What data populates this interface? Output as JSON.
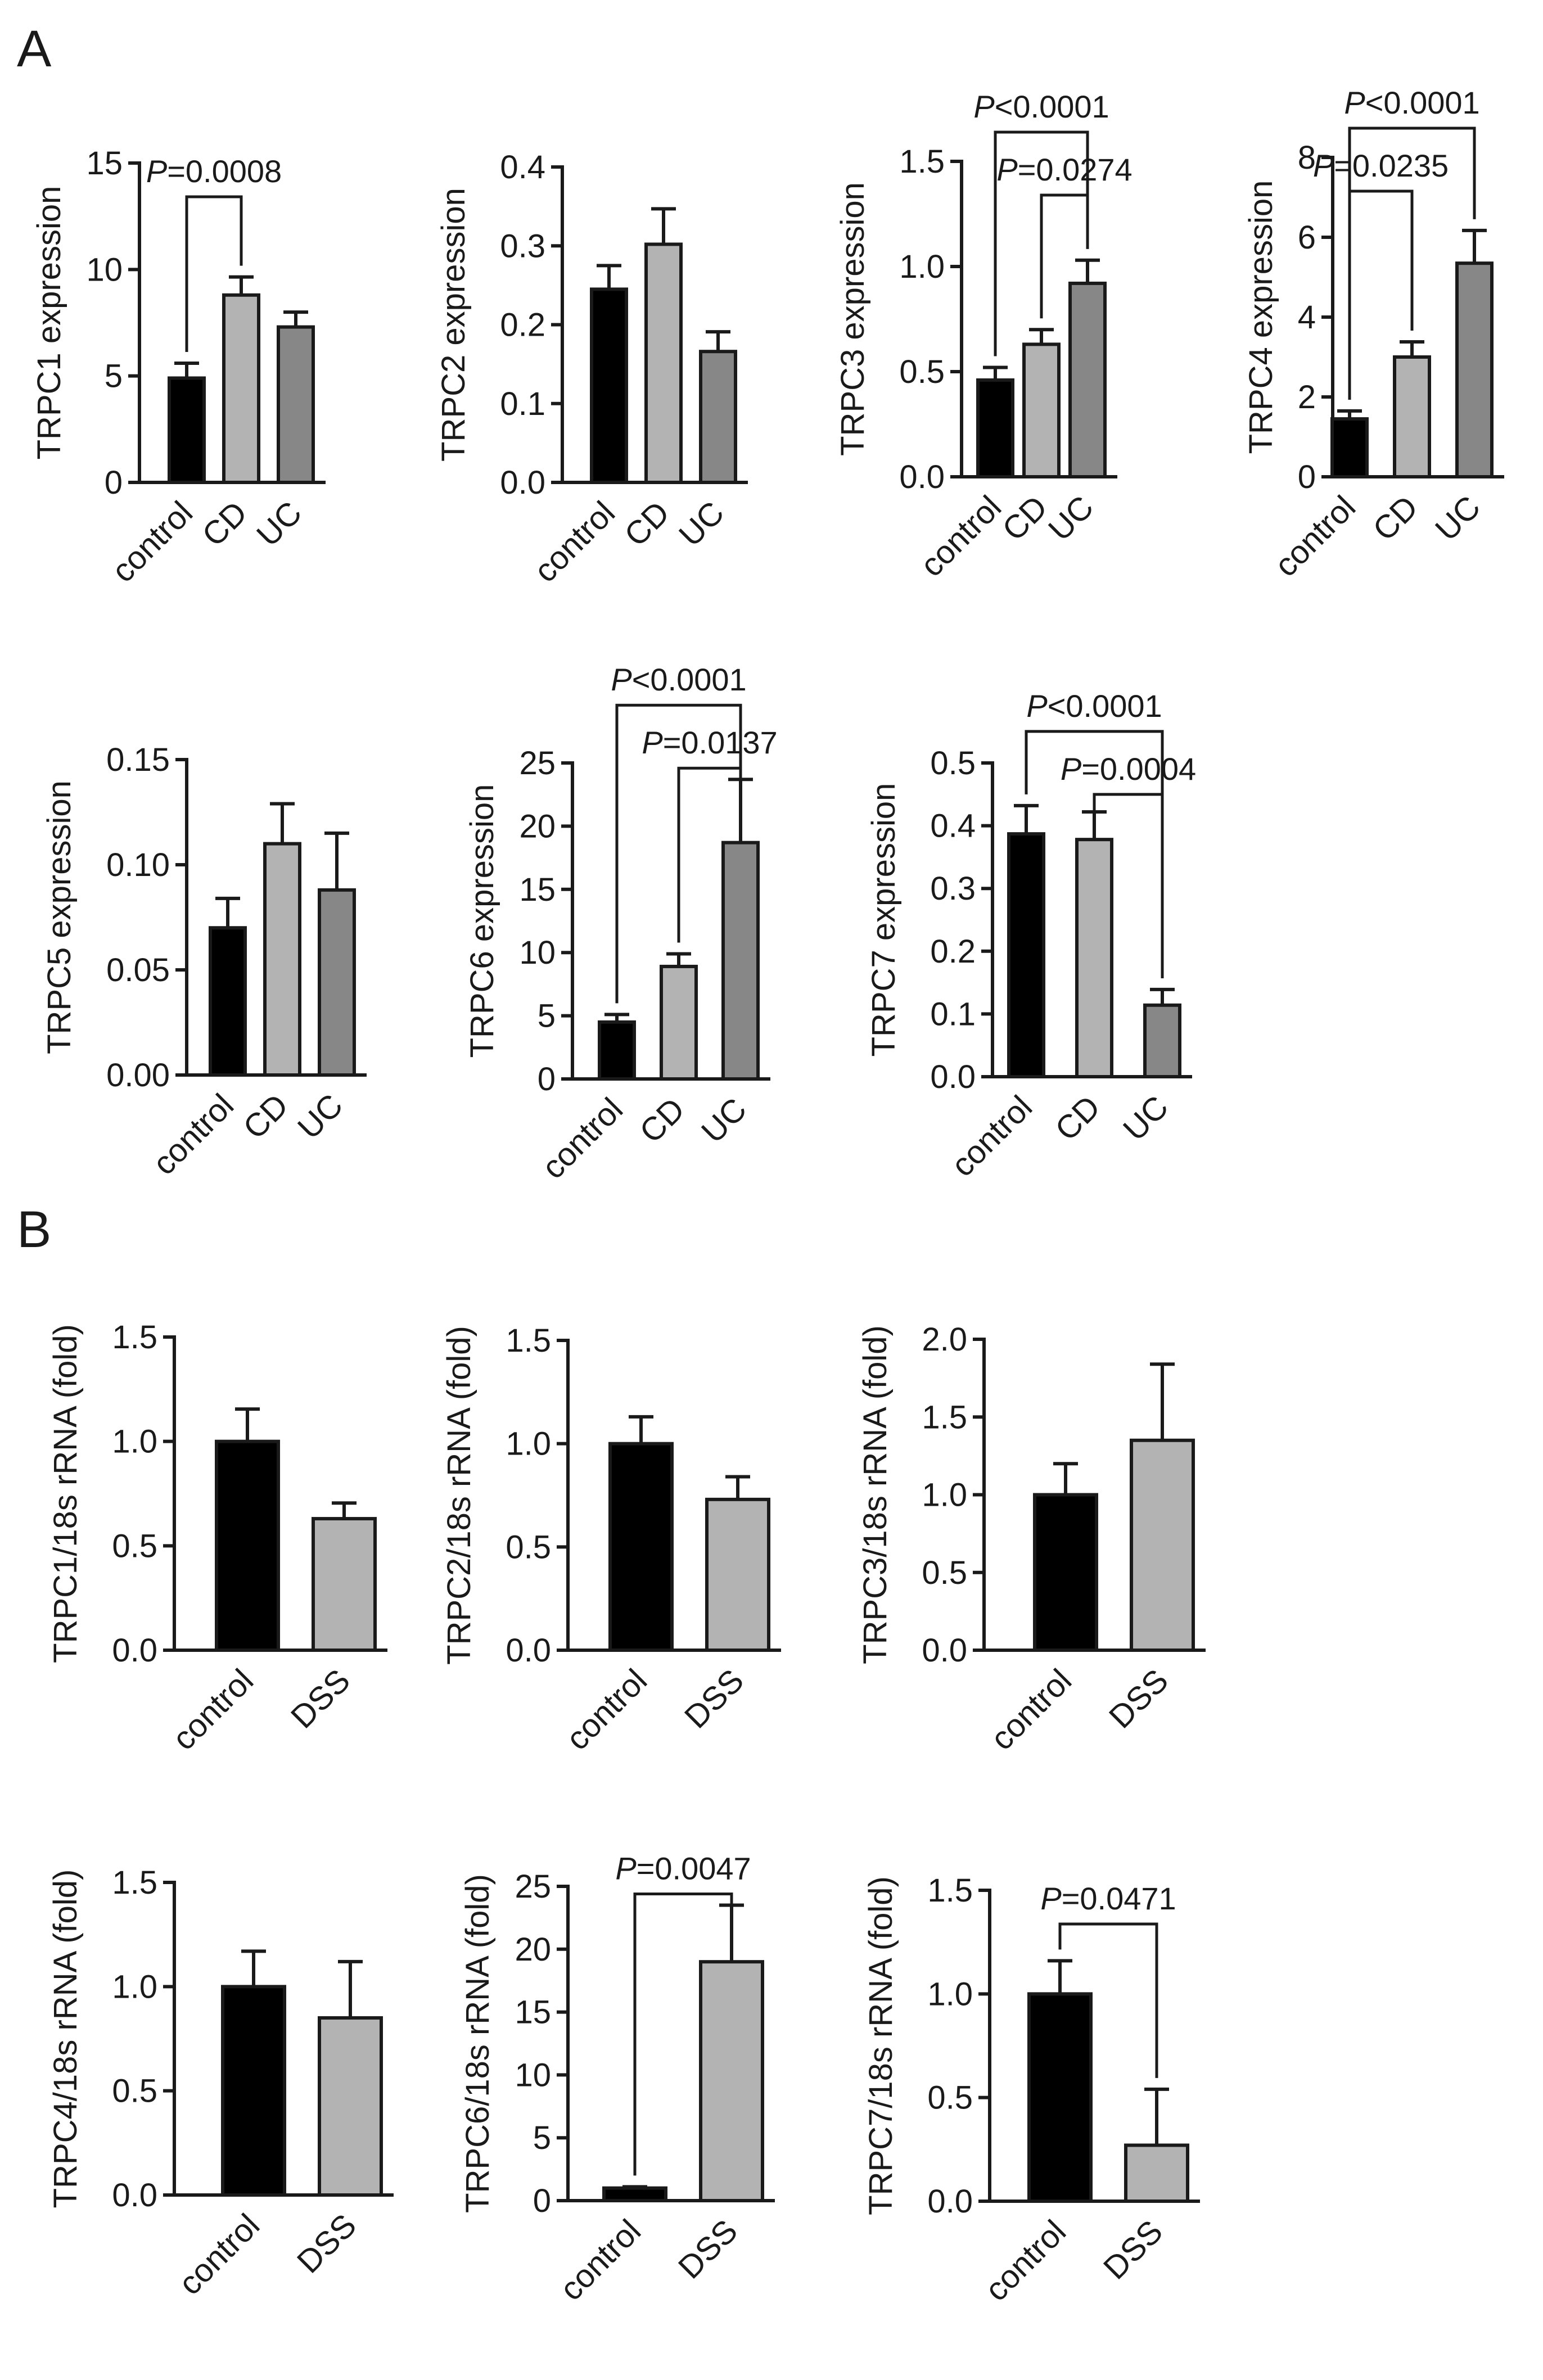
{
  "panels": [
    {
      "label": "A"
    },
    {
      "label": "B"
    }
  ],
  "colors": {
    "control": "#000000",
    "CD": "#b3b3b3",
    "UC": "#878787",
    "DSS": "#b3b3b3",
    "axis": "#1a1a1a"
  },
  "chart_data": [
    {
      "type": "bar",
      "panel": "A",
      "title": "",
      "xlabel": "",
      "ylabel": "TRPC1 expression",
      "categories": [
        "control",
        "CD",
        "UC"
      ],
      "values": [
        4.9,
        8.8,
        7.3
      ],
      "errors": [
        0.7,
        0.85,
        0.7
      ],
      "ylim": [
        0,
        15
      ],
      "yticks": [
        0,
        5,
        10,
        15
      ],
      "tick_labels": [
        "0",
        "5",
        "10",
        "15"
      ],
      "significance": [
        {
          "from": 0,
          "to": 1,
          "label": "P=0.0008"
        }
      ]
    },
    {
      "type": "bar",
      "panel": "A",
      "title": "",
      "xlabel": "",
      "ylabel": "TRPC2 expression",
      "categories": [
        "control",
        "CD",
        "UC"
      ],
      "values": [
        0.245,
        0.302,
        0.166
      ],
      "errors": [
        0.03,
        0.045,
        0.025
      ],
      "ylim": [
        0,
        0.4
      ],
      "yticks": [
        0,
        0.1,
        0.2,
        0.3,
        0.4
      ],
      "tick_labels": [
        "0.0",
        "0.1",
        "0.2",
        "0.3",
        "0.4"
      ],
      "significance": []
    },
    {
      "type": "bar",
      "panel": "A",
      "title": "",
      "xlabel": "",
      "ylabel": "TRPC3 expression",
      "categories": [
        "control",
        "CD",
        "UC"
      ],
      "values": [
        0.46,
        0.63,
        0.92
      ],
      "errors": [
        0.06,
        0.07,
        0.11
      ],
      "ylim": [
        0,
        1.5
      ],
      "yticks": [
        0,
        0.5,
        1.0,
        1.5
      ],
      "tick_labels": [
        "0.0",
        "0.5",
        "1.0",
        "1.5"
      ],
      "significance": [
        {
          "from": 0,
          "to": 2,
          "label": "P<0.0001"
        },
        {
          "from": 1,
          "to": 2,
          "label": "P=0.0274"
        }
      ]
    },
    {
      "type": "bar",
      "panel": "A",
      "title": "",
      "xlabel": "",
      "ylabel": "TRPC4 expression",
      "categories": [
        "control",
        "CD",
        "UC"
      ],
      "values": [
        1.45,
        3.0,
        5.35
      ],
      "errors": [
        0.2,
        0.38,
        0.82
      ],
      "ylim": [
        0,
        8
      ],
      "yticks": [
        0,
        2,
        4,
        6,
        8
      ],
      "tick_labels": [
        "0",
        "2",
        "4",
        "6",
        "8"
      ],
      "significance": [
        {
          "from": 0,
          "to": 2,
          "label": "P<0.0001"
        },
        {
          "from": 0,
          "to": 1,
          "label": "P=0.0235"
        }
      ]
    },
    {
      "type": "bar",
      "panel": "A",
      "title": "",
      "xlabel": "",
      "ylabel": "TRPC5 expression",
      "categories": [
        "control",
        "CD",
        "UC"
      ],
      "values": [
        0.07,
        0.11,
        0.088
      ],
      "errors": [
        0.014,
        0.019,
        0.027
      ],
      "ylim": [
        0,
        0.15
      ],
      "yticks": [
        0,
        0.05,
        0.1,
        0.15
      ],
      "tick_labels": [
        "0.00",
        "0.05",
        "0.10",
        "0.15"
      ],
      "significance": []
    },
    {
      "type": "bar",
      "panel": "A",
      "title": "",
      "xlabel": "",
      "ylabel": "TRPC6 expression",
      "categories": [
        "control",
        "CD",
        "UC"
      ],
      "values": [
        4.5,
        8.9,
        18.7
      ],
      "errors": [
        0.6,
        1.0,
        5.0
      ],
      "ylim": [
        0,
        25
      ],
      "yticks": [
        0,
        5,
        10,
        15,
        20,
        25
      ],
      "tick_labels": [
        "0",
        "5",
        "10",
        "15",
        "20",
        "25"
      ],
      "significance": [
        {
          "from": 0,
          "to": 2,
          "label": "P<0.0001"
        },
        {
          "from": 1,
          "to": 2,
          "label": "P=0.0137"
        }
      ]
    },
    {
      "type": "bar",
      "panel": "A",
      "title": "",
      "xlabel": "",
      "ylabel": "TRPC7 expression",
      "categories": [
        "control",
        "CD",
        "UC"
      ],
      "values": [
        0.387,
        0.378,
        0.114
      ],
      "errors": [
        0.045,
        0.044,
        0.025
      ],
      "ylim": [
        0,
        0.5
      ],
      "yticks": [
        0,
        0.1,
        0.2,
        0.3,
        0.4,
        0.5
      ],
      "tick_labels": [
        "0.0",
        "0.1",
        "0.2",
        "0.3",
        "0.4",
        "0.5"
      ],
      "significance": [
        {
          "from": 0,
          "to": 2,
          "label": "P<0.0001"
        },
        {
          "from": 1,
          "to": 2,
          "label": "P=0.0004"
        }
      ]
    },
    {
      "type": "bar",
      "panel": "B",
      "title": "",
      "xlabel": "",
      "ylabel": "TRPC1/18s rRNA (fold)",
      "categories": [
        "control",
        "DSS"
      ],
      "values": [
        1.0,
        0.63
      ],
      "errors": [
        0.155,
        0.075
      ],
      "ylim": [
        0,
        1.5
      ],
      "yticks": [
        0,
        0.5,
        1.0,
        1.5
      ],
      "tick_labels": [
        "0.0",
        "0.5",
        "1.0",
        "1.5"
      ],
      "significance": []
    },
    {
      "type": "bar",
      "panel": "B",
      "title": "",
      "xlabel": "",
      "ylabel": "TRPC2/18s rRNA (fold)",
      "categories": [
        "control",
        "DSS"
      ],
      "values": [
        1.0,
        0.73
      ],
      "errors": [
        0.13,
        0.11
      ],
      "ylim": [
        0,
        1.5
      ],
      "yticks": [
        0,
        0.5,
        1.0,
        1.5
      ],
      "tick_labels": [
        "0.0",
        "0.5",
        "1.0",
        "1.5"
      ],
      "significance": []
    },
    {
      "type": "bar",
      "panel": "B",
      "title": "",
      "xlabel": "",
      "ylabel": "TRPC3/18s rRNA (fold)",
      "categories": [
        "control",
        "DSS"
      ],
      "values": [
        1.0,
        1.35
      ],
      "errors": [
        0.2,
        0.49
      ],
      "ylim": [
        0,
        2.0
      ],
      "yticks": [
        0,
        0.5,
        1.0,
        1.5,
        2.0
      ],
      "tick_labels": [
        "0.0",
        "0.5",
        "1.0",
        "1.5",
        "2.0"
      ],
      "significance": []
    },
    {
      "type": "bar",
      "panel": "B",
      "title": "",
      "xlabel": "",
      "ylabel": "TRPC4/18s rRNA (fold)",
      "categories": [
        "control",
        "DSS"
      ],
      "values": [
        1.0,
        0.85
      ],
      "errors": [
        0.17,
        0.27
      ],
      "ylim": [
        0,
        1.5
      ],
      "yticks": [
        0,
        0.5,
        1.0,
        1.5
      ],
      "tick_labels": [
        "0.0",
        "0.5",
        "1.0",
        "1.5"
      ],
      "significance": []
    },
    {
      "type": "bar",
      "panel": "B",
      "title": "",
      "xlabel": "",
      "ylabel": "TRPC6/18s rRNA (fold)",
      "categories": [
        "control",
        "DSS"
      ],
      "values": [
        1.0,
        19.0
      ],
      "errors": [
        0.1,
        4.5
      ],
      "ylim": [
        0,
        25
      ],
      "yticks": [
        0,
        5,
        10,
        15,
        20,
        25
      ],
      "tick_labels": [
        "0",
        "5",
        "10",
        "15",
        "20",
        "25"
      ],
      "significance": [
        {
          "from": 0,
          "to": 1,
          "label": "P=0.0047"
        }
      ]
    },
    {
      "type": "bar",
      "panel": "B",
      "title": "",
      "xlabel": "",
      "ylabel": "TRPC7/18s rRNA (fold)",
      "categories": [
        "control",
        "DSS"
      ],
      "values": [
        1.0,
        0.27
      ],
      "errors": [
        0.16,
        0.27
      ],
      "ylim": [
        0,
        1.5
      ],
      "yticks": [
        0,
        0.5,
        1.0,
        1.5
      ],
      "tick_labels": [
        "0.0",
        "0.5",
        "1.0",
        "1.5"
      ],
      "significance": [
        {
          "from": 0,
          "to": 1,
          "label": "P=0.0471"
        }
      ]
    }
  ]
}
